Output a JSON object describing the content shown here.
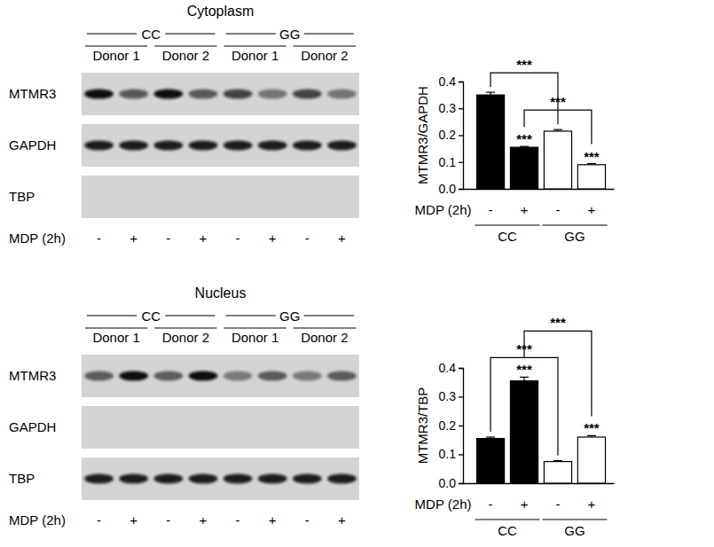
{
  "chart_data": [
    {
      "type": "bar",
      "y_label": "MTMR3/GAPDH",
      "category_label": "MDP (2h)",
      "categories": [
        "-",
        "+",
        "-",
        "+"
      ],
      "groups": [
        "CC",
        "GG"
      ],
      "values": [
        0.35,
        0.155,
        0.215,
        0.09
      ],
      "errors": [
        0.01,
        0.003,
        0.006,
        0.004
      ],
      "colors": [
        "#000000",
        "#000000",
        "#ffffff",
        "#ffffff"
      ],
      "ylim": [
        0,
        0.4
      ],
      "yticks": [
        {
          "value": 0,
          "label": "0.0"
        },
        0.1,
        0.2,
        0.3,
        0.4
      ],
      "annotations": [
        {
          "bar": 1,
          "text": "***"
        },
        {
          "bar": 3,
          "text": "***"
        }
      ],
      "brackets": [
        {
          "from": 0,
          "to": 2,
          "text": "***"
        },
        {
          "from": 1,
          "to": 3,
          "text": "***"
        }
      ]
    },
    {
      "type": "bar",
      "y_label": "MTMR3/TBP",
      "category_label": "MDP (2h)",
      "categories": [
        "-",
        "+",
        "-",
        "+"
      ],
      "groups": [
        "CC",
        "GG"
      ],
      "values": [
        0.155,
        0.355,
        0.075,
        0.16
      ],
      "errors": [
        0.005,
        0.013,
        0.003,
        0.005
      ],
      "colors": [
        "#000000",
        "#000000",
        "#ffffff",
        "#ffffff"
      ],
      "ylim": [
        0,
        0.4
      ],
      "yticks": [
        {
          "value": 0,
          "label": "0.0"
        },
        0.1,
        0.2,
        0.3,
        0.4
      ],
      "annotations": [
        {
          "bar": 1,
          "text": "***"
        },
        {
          "bar": 3,
          "text": "***"
        }
      ],
      "brackets": [
        {
          "from": 0,
          "to": 2,
          "text": "***"
        },
        {
          "from": 1,
          "to": 3,
          "text": "***"
        }
      ]
    }
  ],
  "blots": [
    {
      "title": "Cytoplasm",
      "genotypes": [
        {
          "label": "CC",
          "donors": [
            "Donor 1",
            "Donor 2"
          ]
        },
        {
          "label": "GG",
          "donors": [
            "Donor 1",
            "Donor 2"
          ]
        }
      ],
      "rows": [
        {
          "label": "MTMR3",
          "bands": true
        },
        {
          "label": "GAPDH",
          "bands": true
        },
        {
          "label": "TBP",
          "bands": false
        }
      ],
      "treatment_label": "MDP (2h)",
      "lanes": [
        "-",
        "+",
        "-",
        "+",
        "-",
        "+",
        "-",
        "+"
      ]
    },
    {
      "title": "Nucleus",
      "genotypes": [
        {
          "label": "CC",
          "donors": [
            "Donor 1",
            "Donor 2"
          ]
        },
        {
          "label": "GG",
          "donors": [
            "Donor 1",
            "Donor 2"
          ]
        }
      ],
      "rows": [
        {
          "label": "MTMR3",
          "bands": true
        },
        {
          "label": "GAPDH",
          "bands": false
        },
        {
          "label": "TBP",
          "bands": true
        }
      ],
      "treatment_label": "MDP (2h)",
      "lanes": [
        "-",
        "+",
        "-",
        "+",
        "-",
        "+",
        "-",
        "+"
      ]
    }
  ]
}
